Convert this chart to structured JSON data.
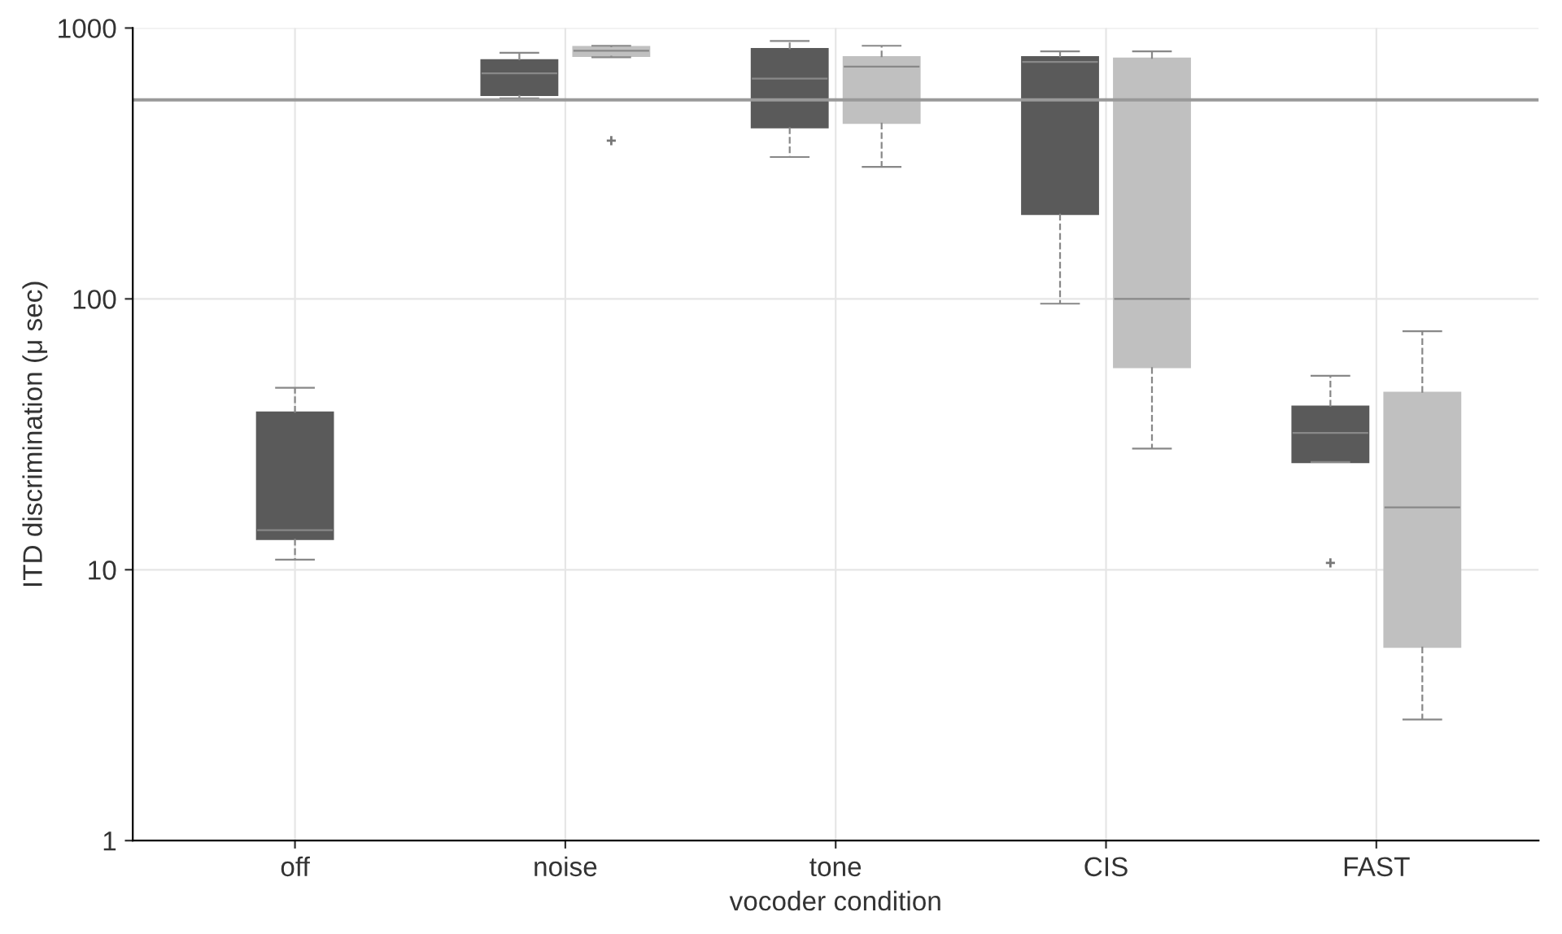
{
  "chart_data": {
    "type": "box",
    "xlabel": "vocoder condition",
    "ylabel": "ITD discrimination (μ sec)",
    "categories": [
      "off",
      "noise",
      "tone",
      "CIS",
      "FAST"
    ],
    "series": [
      {
        "color": "#5a5a5a",
        "boxes": [
          {
            "low": 10.9,
            "q1": 13,
            "median": 14,
            "q3": 38,
            "high": 47
          },
          {
            "low": 550,
            "q1": 566,
            "median": 680,
            "q3": 760,
            "high": 810
          },
          {
            "low": 334,
            "q1": 430,
            "median": 650,
            "q3": 835,
            "high": 895
          },
          {
            "low": 96,
            "q1": 206,
            "median": 750,
            "q3": 780,
            "high": 820
          },
          {
            "low": 25,
            "q1": 25,
            "median": 32,
            "q3": 40,
            "high": 52,
            "outliers": [
              10.6
            ]
          }
        ]
      },
      {
        "color": "#c0c0c0",
        "boxes": [
          null,
          {
            "low": 780,
            "q1": 790,
            "median": 824,
            "q3": 850,
            "high": 860,
            "outliers": [
              384
            ]
          },
          {
            "low": 307,
            "q1": 447,
            "median": 720,
            "q3": 780,
            "high": 860
          },
          {
            "low": 28,
            "q1": 56,
            "median": 100,
            "q3": 770,
            "high": 820
          },
          {
            "low": 2.8,
            "q1": 5.2,
            "median": 17,
            "q3": 45,
            "high": 76
          }
        ]
      }
    ],
    "ylim": [
      1,
      1000
    ],
    "yticks": [
      1,
      10,
      100,
      1000
    ],
    "log": true,
    "grid": true,
    "legend": false,
    "ref_lines": [
      {
        "axis": "y",
        "value": 543,
        "color": "#999999",
        "line_style": "solid"
      }
    ]
  }
}
